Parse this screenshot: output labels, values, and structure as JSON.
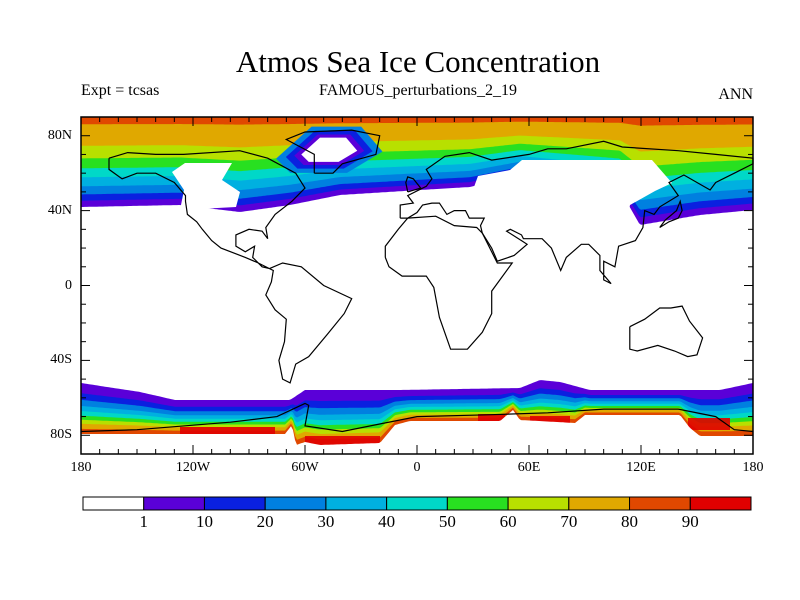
{
  "title": "Atmos Sea Ice Concentration",
  "left_subtitle": "Expt = tcsas",
  "center_subtitle": "FAMOUS_perturbations_2_19",
  "right_subtitle": "ANN",
  "lon_labels": [
    "180",
    "120W",
    "60W",
    "0",
    "60E",
    "120E",
    "180"
  ],
  "lat_labels": [
    "80N",
    "40N",
    "0",
    "40S",
    "80S"
  ],
  "colorbar": {
    "levels": [
      "1",
      "10",
      "20",
      "30",
      "40",
      "50",
      "60",
      "70",
      "80",
      "90"
    ],
    "colors": [
      "#ffffff",
      "#5a00d8",
      "#0a20e0",
      "#0080e0",
      "#00b0e0",
      "#00d8c8",
      "#28e020",
      "#b8e000",
      "#e0a800",
      "#e04800",
      "#e00000"
    ]
  },
  "chart_data": {
    "type": "heatmap",
    "title": "Atmos Sea Ice Concentration",
    "variable": "sea ice concentration (%)",
    "lon_range": [
      -180,
      180
    ],
    "lat_range": [
      -90,
      90
    ],
    "contour_levels": [
      1,
      10,
      20,
      30,
      40,
      50,
      60,
      70,
      80,
      90
    ]
  }
}
